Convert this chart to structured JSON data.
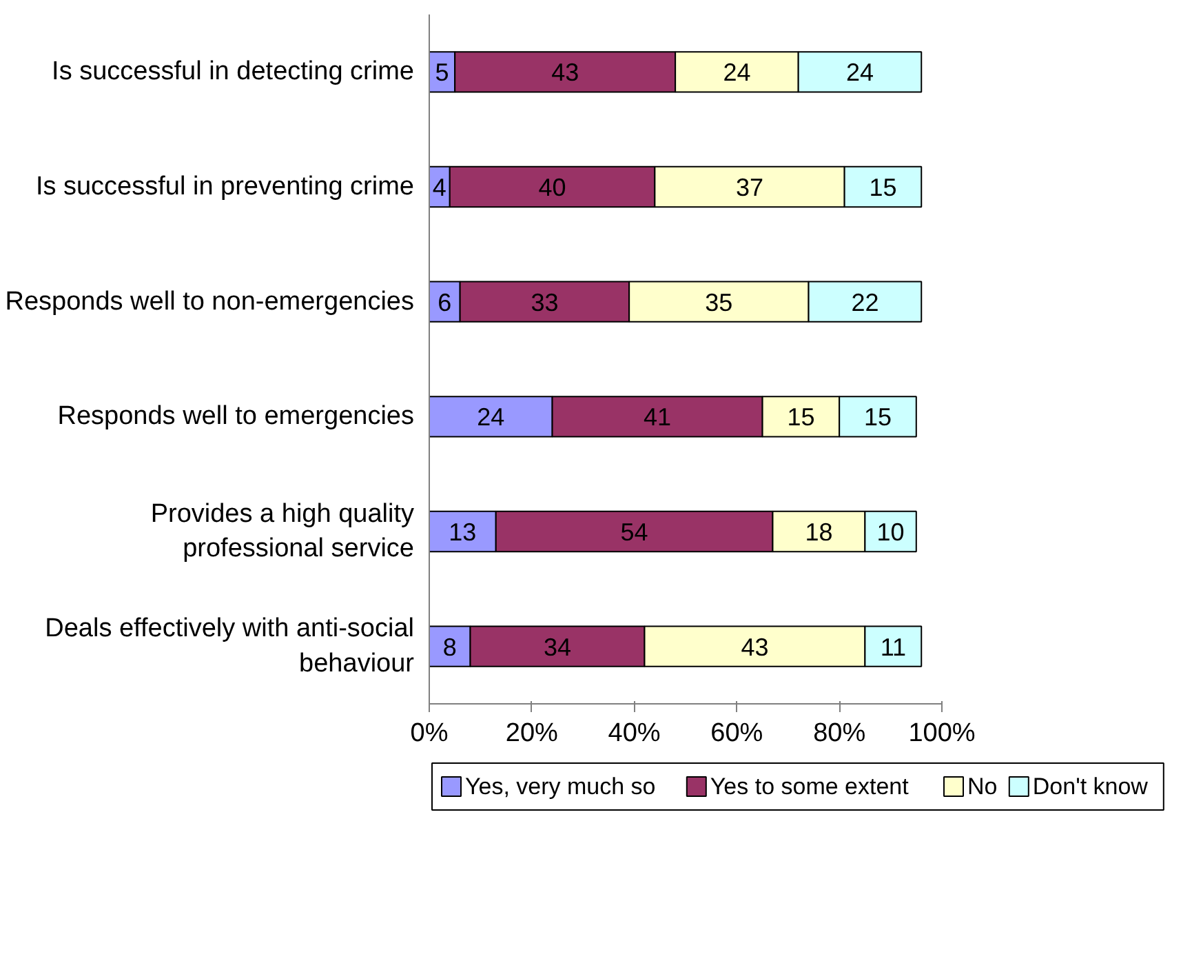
{
  "chart_data": {
    "type": "bar",
    "orientation": "horizontal",
    "stacked": true,
    "data_labels": true,
    "grid": false,
    "legend": "bottom",
    "categories": [
      "Is successful in detecting crime",
      "Is successful in preventing crime",
      "Responds well to non-emergencies",
      "Responds well to emergencies",
      "Provides a high quality professional service",
      "Deals effectively with anti-social behaviour"
    ],
    "series": [
      {
        "name": "Yes, very much so",
        "color": "#9999ff",
        "values": [
          5,
          4,
          6,
          24,
          13,
          8
        ]
      },
      {
        "name": "Yes to some extent",
        "color": "#993366",
        "values": [
          43,
          40,
          33,
          41,
          54,
          34
        ]
      },
      {
        "name": "No",
        "color": "#ffffcc",
        "values": [
          24,
          37,
          35,
          15,
          18,
          43
        ]
      },
      {
        "name": "Don't know",
        "color": "#ccffff",
        "values": [
          24,
          15,
          22,
          15,
          10,
          11
        ]
      }
    ],
    "xlim": [
      0,
      100
    ],
    "xticks": [
      {
        "value": 0,
        "label": "0%"
      },
      {
        "value": 20,
        "label": "20%"
      },
      {
        "value": 40,
        "label": "40%"
      },
      {
        "value": 60,
        "label": "60%"
      },
      {
        "value": 80,
        "label": "80%"
      },
      {
        "value": 100,
        "label": "100%"
      }
    ]
  }
}
